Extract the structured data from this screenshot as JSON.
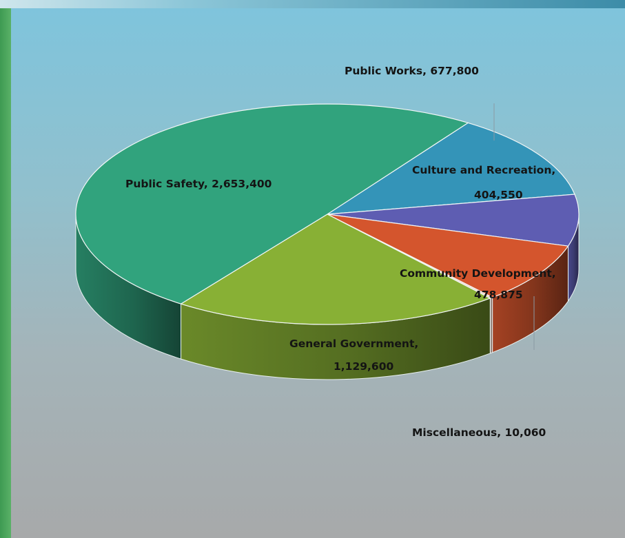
{
  "chart_data": {
    "type": "pie",
    "title": "",
    "slices": [
      {
        "label": "Public Works",
        "value": 677800,
        "value_text": "677,800",
        "color": "#3494b8"
      },
      {
        "label": "Culture and Recreation",
        "value": 404550,
        "value_text": "404,550",
        "color": "#5e5db2"
      },
      {
        "label": "Community Development",
        "value": 478875,
        "value_text": "478,875",
        "color": "#d4552d"
      },
      {
        "label": "Miscellaneous",
        "value": 10060,
        "value_text": "10,060",
        "color": "#f0d4c4"
      },
      {
        "label": "General Government",
        "value": 1129600,
        "value_text": "1,129,600",
        "color": "#88b035"
      },
      {
        "label": "Public Safety",
        "value": 2653400,
        "value_text": "2,653,400",
        "color": "#31a37d"
      }
    ],
    "legend": "none",
    "style": "3d-exploded-off"
  },
  "labels": {
    "public_works": {
      "line1": "Public Works, 677,800"
    },
    "culture": {
      "line1": "Culture and Recreation,",
      "line2": "404,550"
    },
    "community": {
      "line1": "Community Development,",
      "line2": "478,875"
    },
    "miscellaneous": {
      "line1": "Miscellaneous, 10,060"
    },
    "general": {
      "line1": "General Government,",
      "line2": "1,129,600"
    },
    "safety": {
      "line1": "Public Safety, 2,653,400"
    }
  }
}
